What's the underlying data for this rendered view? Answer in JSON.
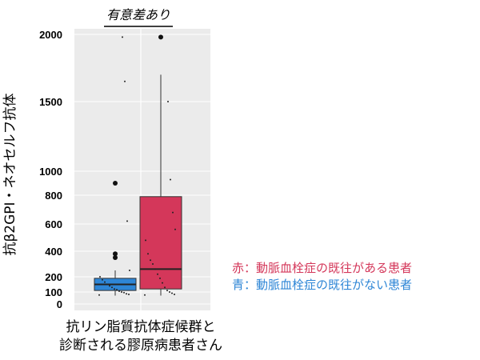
{
  "chart_data": {
    "type": "box",
    "y_scale": "nonlinear (2000/1500/1000 spaced wider; compressed below 1000)",
    "y_ticks": [
      0,
      100,
      200,
      400,
      600,
      800,
      1000,
      1500,
      2000
    ],
    "y_label": "抗β2GPI・ネオセルフ抗体",
    "x_label_lines": [
      "抗リン脂質抗体症候群と",
      "診断される膠原病患者さん"
    ],
    "significance_label": "有意差あり",
    "grid": true,
    "background": "#ebebeb",
    "legend": [
      {
        "text": "赤：動脈血栓症の既往がある患者",
        "color": "#d4375a"
      },
      {
        "text": "青：動脈血栓症の既往がない患者",
        "color": "#2e86d6"
      }
    ],
    "series": [
      {
        "group": "no_arterial_thrombosis",
        "color": "#2e86d6",
        "box": {
          "min": 70,
          "q1": 110,
          "median": 150,
          "q3": 190,
          "max": 250
        },
        "outliers": [
          380,
          350,
          900
        ],
        "points": [
          75,
          80,
          85,
          95,
          100,
          105,
          115,
          120,
          130,
          140,
          150,
          165,
          180,
          200,
          250,
          620,
          1650,
          1980
        ]
      },
      {
        "group": "arterial_thrombosis",
        "color": "#d4375a",
        "box": {
          "min": 70,
          "q1": 120,
          "median": 260,
          "q3": 790,
          "max": 1700
        },
        "outliers": [
          1980
        ],
        "points": [
          75,
          80,
          90,
          100,
          110,
          130,
          160,
          190,
          220,
          260,
          300,
          330,
          380,
          480,
          560,
          680,
          930,
          1500
        ]
      }
    ]
  }
}
